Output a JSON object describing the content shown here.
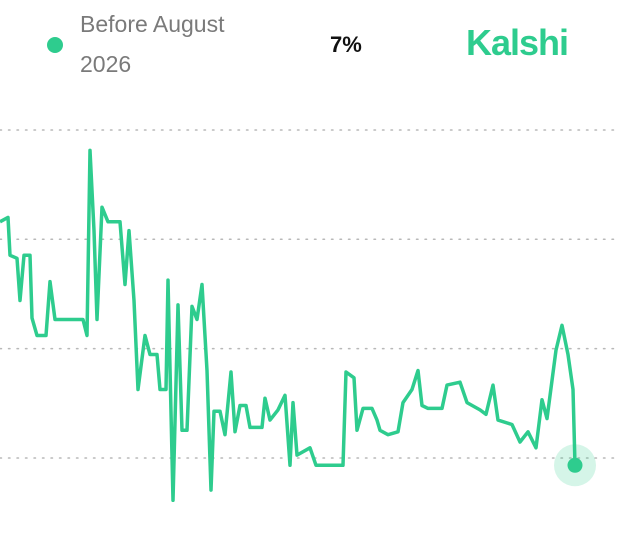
{
  "brand": "Kalshi",
  "chart_data": {
    "type": "line",
    "current_label": "7%",
    "xlim": [
      0,
      575
    ],
    "ylim": [
      3,
      32
    ],
    "yticks": [
      7.5,
      15,
      22.5,
      30
    ],
    "grid": true,
    "series": [
      {
        "name": "Before August 2026",
        "color": "#2ecc8e",
        "x": [
          0,
          8,
          10,
          17,
          20,
          24,
          30,
          32,
          37,
          46,
          50,
          55,
          83,
          87,
          90,
          94,
          97,
          102,
          108,
          120,
          125,
          129,
          134,
          138,
          145,
          150,
          157,
          160,
          166,
          168,
          173,
          178,
          182,
          187,
          192,
          197,
          202,
          207,
          211,
          214,
          220,
          225,
          231,
          235,
          240,
          246,
          250,
          262,
          265,
          270,
          278,
          285,
          290,
          293,
          297,
          310,
          316,
          343,
          346,
          354,
          357,
          363,
          372,
          377,
          380,
          388,
          398,
          403,
          412,
          418,
          422,
          428,
          442,
          447,
          460,
          467,
          480,
          486,
          493,
          498,
          512,
          520,
          528,
          536,
          542,
          547,
          556,
          562,
          568,
          573,
          575
        ],
        "values": [
          23.7,
          24.0,
          21.4,
          21.2,
          18.3,
          21.4,
          21.4,
          17.1,
          15.9,
          15.9,
          19.6,
          17.0,
          17.0,
          15.9,
          28.6,
          23.1,
          17.0,
          24.7,
          23.7,
          23.7,
          19.4,
          23.1,
          18.3,
          12.2,
          15.9,
          14.6,
          14.6,
          12.2,
          12.2,
          19.7,
          4.6,
          18.0,
          9.4,
          9.4,
          17.9,
          17.0,
          19.4,
          13.5,
          5.3,
          10.7,
          10.7,
          9.1,
          13.4,
          9.3,
          11.1,
          11.1,
          9.6,
          9.6,
          11.6,
          10.1,
          10.8,
          11.8,
          7.0,
          11.3,
          7.7,
          8.2,
          7.0,
          7.0,
          13.4,
          13.0,
          9.4,
          10.9,
          10.9,
          10.1,
          9.4,
          9.1,
          9.3,
          11.3,
          12.2,
          13.5,
          11.1,
          10.9,
          10.9,
          12.5,
          12.7,
          11.3,
          10.8,
          10.5,
          12.5,
          10.1,
          9.8,
          8.6,
          9.3,
          8.2,
          11.5,
          10.2,
          14.9,
          16.6,
          14.6,
          12.2,
          7.0
        ]
      }
    ]
  }
}
